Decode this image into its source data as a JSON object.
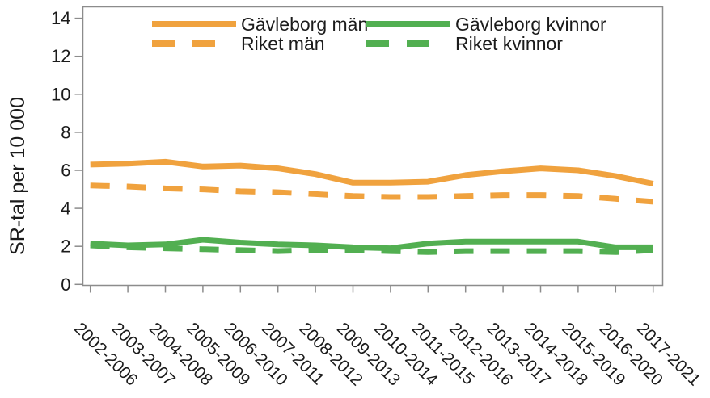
{
  "chart_data": {
    "type": "line",
    "title": "",
    "xlabel": "",
    "ylabel": "SR-tal per 10 000",
    "ylim": [
      0,
      14
    ],
    "yticks": [
      0,
      2,
      4,
      6,
      8,
      10,
      12,
      14
    ],
    "grid": false,
    "legend_position": "inside-top, two columns",
    "axis_color": "#8c8c8c",
    "text_color": "#1b1b1b",
    "categories": [
      "2002-2006",
      "2003-2007",
      "2004-2008",
      "2005-2009",
      "2006-2010",
      "2007-2011",
      "2008-2012",
      "2009-2013",
      "2010-2014",
      "2011-2015",
      "2012-2016",
      "2013-2017",
      "2014-2018",
      "2015-2019",
      "2016-2020",
      "2017-2021"
    ],
    "series": [
      {
        "name": "Gävleborg män",
        "style": "solid",
        "color": "#f0a23e",
        "values": [
          6.3,
          6.35,
          6.45,
          6.2,
          6.25,
          6.1,
          5.8,
          5.35,
          5.35,
          5.4,
          5.75,
          5.95,
          6.1,
          6.0,
          5.7,
          5.3
        ]
      },
      {
        "name": "Riket män",
        "style": "dashed",
        "color": "#f0a23e",
        "values": [
          5.2,
          5.15,
          5.05,
          5.0,
          4.9,
          4.85,
          4.75,
          4.65,
          4.6,
          4.6,
          4.65,
          4.7,
          4.7,
          4.65,
          4.5,
          4.35
        ]
      },
      {
        "name": "Gävleborg kvinnor",
        "style": "solid",
        "color": "#52af51",
        "values": [
          2.15,
          2.05,
          2.1,
          2.35,
          2.2,
          2.1,
          2.05,
          1.95,
          1.9,
          2.15,
          2.25,
          2.25,
          2.25,
          2.25,
          1.95,
          1.95
        ]
      },
      {
        "name": "Riket kvinnor",
        "style": "dashed",
        "color": "#52af51",
        "values": [
          2.05,
          1.95,
          1.9,
          1.85,
          1.8,
          1.75,
          1.8,
          1.8,
          1.75,
          1.7,
          1.75,
          1.75,
          1.75,
          1.75,
          1.7,
          1.8
        ]
      }
    ]
  }
}
